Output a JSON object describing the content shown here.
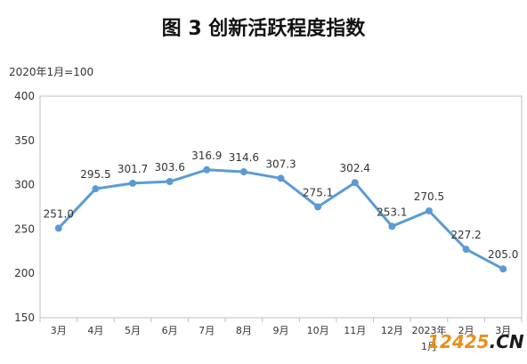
{
  "title": "图 3  创新活跃程度指数",
  "unit_label": "2020年1月=100",
  "watermark": {
    "number": "12425",
    "domain": ".CN"
  },
  "chart_data": {
    "type": "line",
    "title": "图 3  创新活跃程度指数",
    "categories": [
      "3月",
      "4月",
      "5月",
      "6月",
      "7月",
      "8月",
      "9月",
      "10月",
      "11月",
      "12月",
      "2023年1月",
      "2月",
      "3月"
    ],
    "category_lines": [
      [
        "3月"
      ],
      [
        "4月"
      ],
      [
        "5月"
      ],
      [
        "6月"
      ],
      [
        "7月"
      ],
      [
        "8月"
      ],
      [
        "9月"
      ],
      [
        "10月"
      ],
      [
        "11月"
      ],
      [
        "12月"
      ],
      [
        "2023年",
        "1月"
      ],
      [
        "2月"
      ],
      [
        "3月"
      ]
    ],
    "series": [
      {
        "values": [
          251.0,
          295.5,
          301.7,
          303.6,
          316.9,
          314.6,
          307.3,
          275.1,
          302.4,
          253.1,
          270.5,
          227.2,
          205.0
        ]
      }
    ],
    "value_labels": [
      "251.0",
      "295.5",
      "301.7",
      "303.6",
      "316.9",
      "314.6",
      "307.3",
      "275.1",
      "302.4",
      "253.1",
      "270.5",
      "227.2",
      "205.0"
    ],
    "yticks": [
      150,
      200,
      250,
      300,
      350,
      400
    ],
    "ylim": [
      150,
      400
    ],
    "grid": false,
    "line_color": "#5b9bd5"
  }
}
